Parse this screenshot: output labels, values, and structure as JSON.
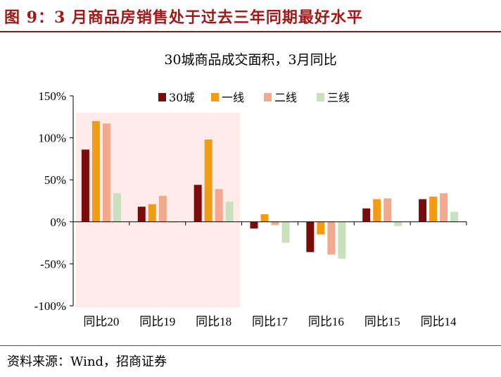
{
  "header": {
    "figure_title": "图 9：3 月商品房销售处于过去三年同期最好水平"
  },
  "footer": {
    "source": "资料来源：Wind，招商证券"
  },
  "colors": {
    "series": [
      "#7b0c0c",
      "#f39c12",
      "#f4a98c",
      "#c8e2bd"
    ],
    "highlight": "#fdecea",
    "title": "#a01818"
  },
  "chart_data": {
    "type": "bar",
    "title": "30城商品成交面积，3月同比",
    "categories": [
      "同比20",
      "同比19",
      "同比18",
      "同比17",
      "同比16",
      "同比15",
      "同比14"
    ],
    "series": [
      {
        "name": "30城",
        "values": [
          86,
          18,
          44,
          -8,
          -36,
          16,
          27
        ]
      },
      {
        "name": "一线",
        "values": [
          120,
          21,
          98,
          9,
          -15,
          27,
          30
        ]
      },
      {
        "name": "二线",
        "values": [
          117,
          31,
          39,
          -4,
          -39,
          28,
          34
        ]
      },
      {
        "name": "三线",
        "values": [
          34,
          -1,
          24,
          -25,
          -44,
          -5,
          12
        ]
      }
    ],
    "ylim": [
      -100,
      150
    ],
    "yticks": [
      150,
      100,
      50,
      0,
      -50,
      -100
    ],
    "ytick_labels": [
      "150%",
      "100%",
      "50%",
      "0%",
      "-50%",
      "-100%"
    ],
    "legend": "top",
    "highlighted_categories": [
      "同比20",
      "同比19",
      "同比18"
    ],
    "grid": false
  }
}
